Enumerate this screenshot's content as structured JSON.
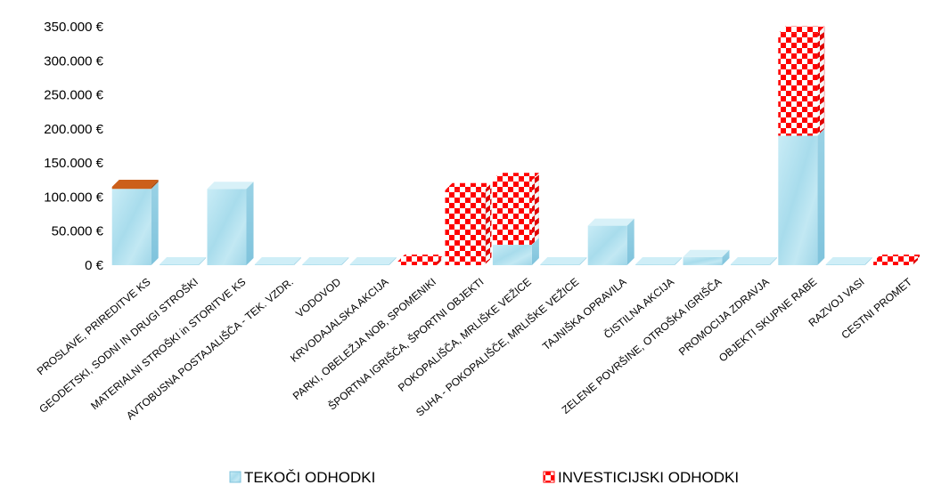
{
  "chart_data": {
    "type": "bar",
    "stacked": true,
    "categories": [
      "PROSLAVE, PRIREDITVE KS",
      "GEODETSKI, SODNI IN DRUGI STROŠKI",
      "MATERIALNI STROŠKI in STORITVE KS",
      "AVTOBUSNA POSTAJALIŠČA - TEK. VZDR.",
      "VODOVOD",
      "KRVODAJALSKA AKCIJA",
      "PARKI, OBELEŽJA NOB, SPOMENIKI",
      "ŠPORTNA IGRIŠČA, ŠPORTNI OBJEKTI",
      "POKOPALIŠČA, MRLIŠKE VEŽICE",
      "SUHA - POKOPALIŠČE, MRLIŠKE VEŽICE",
      "TAJNIŠKA OPRAVILA",
      "ČISTILNA AKCIJA",
      "ZELENE POVRŠINE, OTROŠKA IGRIŠČA",
      "PROMOCIJA ZDRAVJA",
      "OBJEKTI SKUPNE RABE",
      "RAZVOJ VASI",
      "CESTNI PROMET"
    ],
    "series": [
      {
        "name": "TEKOČI ODHODKI",
        "values": [
          112000,
          0,
          112000,
          0,
          0,
          0,
          0,
          0,
          30000,
          0,
          58000,
          0,
          12000,
          0,
          190000,
          0,
          0
        ]
      },
      {
        "name": "INVESTICIJSKI ODHODKI",
        "values": [
          3000,
          0,
          0,
          0,
          0,
          0,
          5000,
          110000,
          95000,
          0,
          0,
          0,
          0,
          0,
          150000,
          0,
          5000
        ]
      }
    ],
    "y_ticks": [
      "0 €",
      "50.000 €",
      "100.000 €",
      "150.000 €",
      "200.000 €",
      "250.000 €",
      "300.000 €",
      "350.000 €"
    ],
    "ylim": [
      0,
      350000
    ],
    "legend_position": "bottom",
    "colors": {
      "tekoci_front": "#b8e4f0",
      "tekoci_side": "#8ccbe0",
      "tekoci_top": "#d8f1f8",
      "invest_red": "#ff0000",
      "invest_white": "#ffffff",
      "orange_top": "#cc5f1a"
    }
  }
}
